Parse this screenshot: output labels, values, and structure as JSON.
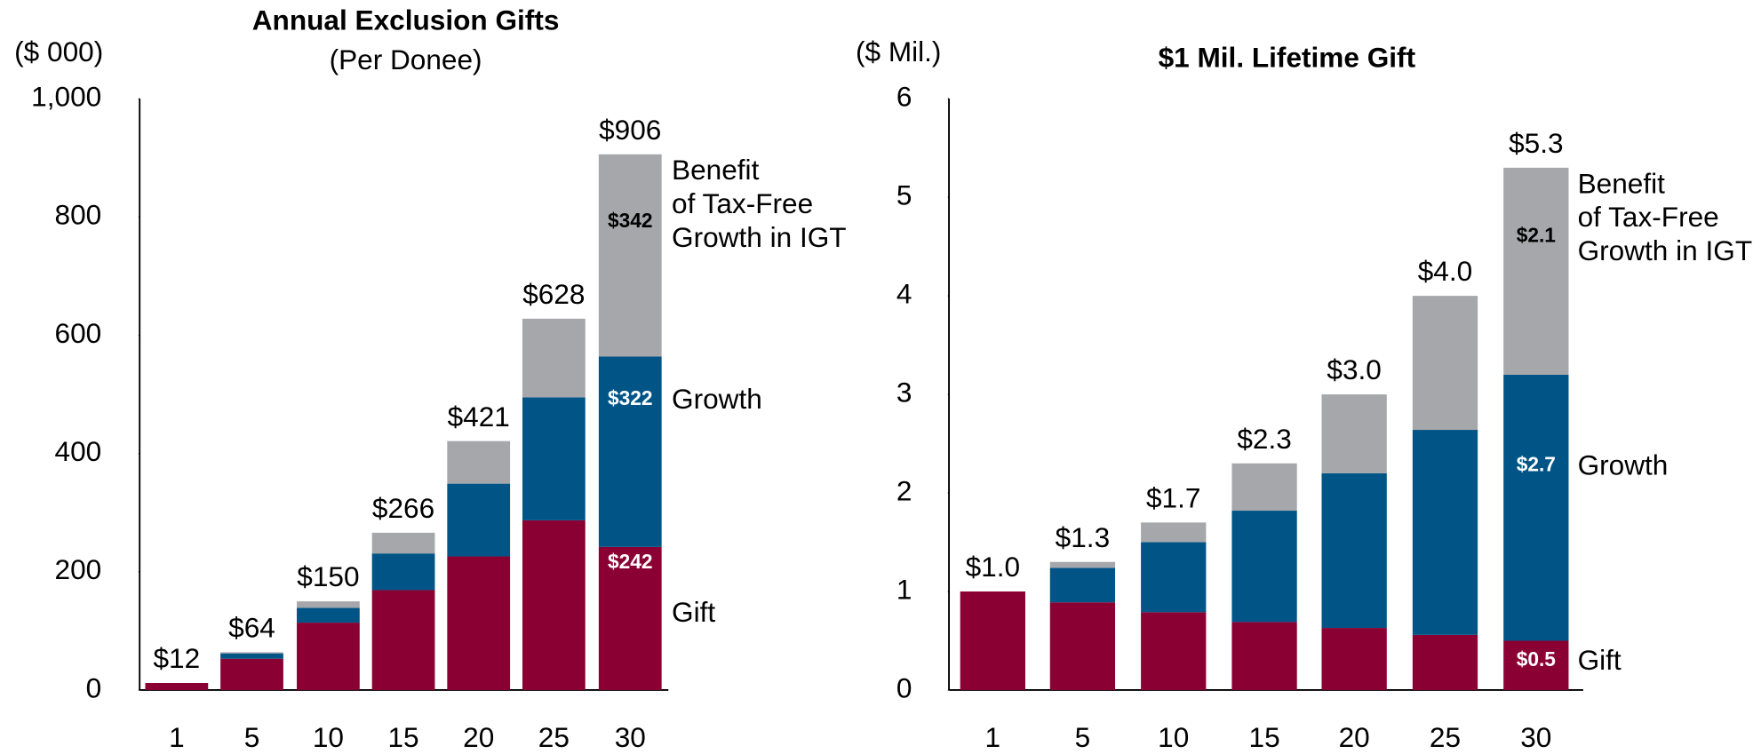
{
  "chart_data": [
    {
      "type": "bar",
      "stacked": true,
      "title": "Annual Exclusion Gifts",
      "subtitle": "(Per Donee)",
      "ylabel": "($ 000)",
      "categories": [
        "1",
        "5",
        "10",
        "15",
        "20",
        "25",
        "30"
      ],
      "series": [
        {
          "name": "Gift",
          "color": "#8b0033",
          "values": [
            12,
            53,
            114,
            169,
            226,
            287,
            242
          ],
          "value_labels": [
            null,
            null,
            null,
            null,
            null,
            null,
            "$242"
          ]
        },
        {
          "name": "Growth",
          "color": "#005586",
          "values": [
            0,
            9,
            25,
            62,
            123,
            208,
            322
          ],
          "value_labels": [
            null,
            null,
            null,
            null,
            null,
            null,
            "$322"
          ]
        },
        {
          "name": "Benefit\nof Tax-Free\nGrowth in IGT",
          "color": "#a6a7ab",
          "values": [
            0,
            2,
            11,
            35,
            72,
            133,
            342
          ],
          "value_labels": [
            null,
            null,
            null,
            null,
            null,
            null,
            "$342"
          ]
        }
      ],
      "totals": [
        12,
        64,
        150,
        266,
        421,
        628,
        906
      ],
      "total_labels": [
        "$12",
        "$64",
        "$150",
        "$266",
        "$421",
        "$628",
        "$906"
      ],
      "ylim": [
        0,
        1000
      ],
      "yticks": [
        0,
        200,
        400,
        600,
        800,
        {
          "value": 1000,
          "label": "1,000"
        }
      ],
      "grid": false
    },
    {
      "type": "bar",
      "stacked": true,
      "title": "$1 Mil. Lifetime Gift",
      "ylabel": "($ Mil.)",
      "categories": [
        "1",
        "5",
        "10",
        "15",
        "20",
        "25",
        "30"
      ],
      "series": [
        {
          "name": "Gift",
          "color": "#8b0033",
          "values": [
            1.0,
            0.89,
            0.79,
            0.69,
            0.63,
            0.56,
            0.5
          ],
          "value_labels": [
            null,
            null,
            null,
            null,
            null,
            null,
            "$0.5"
          ]
        },
        {
          "name": "Growth",
          "color": "#005586",
          "values": [
            0,
            0.35,
            0.71,
            1.13,
            1.57,
            2.08,
            2.7
          ],
          "value_labels": [
            null,
            null,
            null,
            null,
            null,
            null,
            "$2.7"
          ]
        },
        {
          "name": "Benefit\nof Tax-Free\nGrowth in IGT",
          "color": "#a6a7ab",
          "values": [
            0,
            0.06,
            0.2,
            0.48,
            0.8,
            1.36,
            2.1
          ],
          "value_labels": [
            null,
            null,
            null,
            null,
            null,
            null,
            "$2.1"
          ]
        }
      ],
      "totals": [
        1.0,
        1.3,
        1.7,
        2.3,
        3.0,
        4.0,
        5.3
      ],
      "total_labels": [
        "$1.0",
        "$1.3",
        "$1.7",
        "$2.3",
        "$3.0",
        "$4.0",
        "$5.3"
      ],
      "ylim": [
        0,
        6
      ],
      "yticks": [
        0,
        1,
        2,
        3,
        4,
        5,
        6
      ],
      "grid": false
    }
  ]
}
